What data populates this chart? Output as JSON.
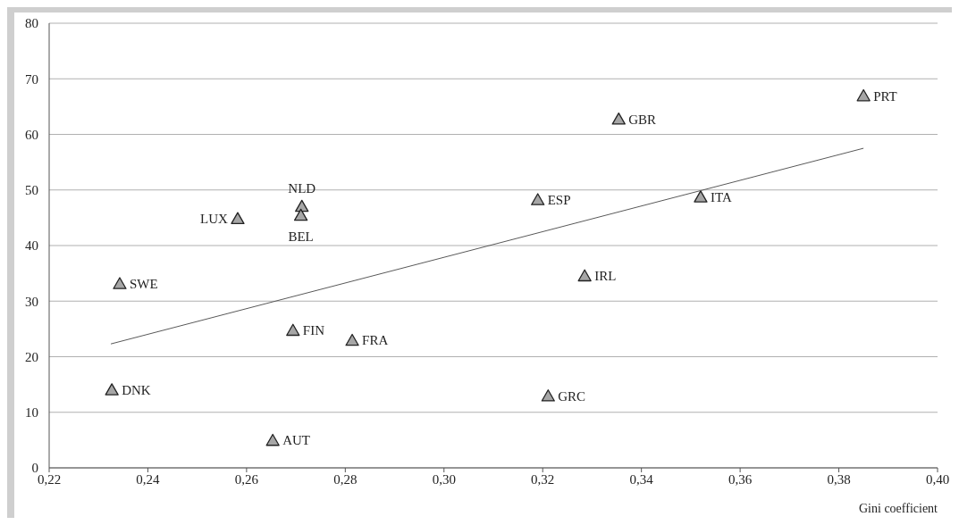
{
  "chart_data": {
    "type": "scatter",
    "xlabel": "Gini coefficient",
    "xlim": [
      0.22,
      0.4
    ],
    "xticks": [
      {
        "value": 0.22,
        "label": "0,22"
      },
      {
        "value": 0.24,
        "label": "0,24"
      },
      {
        "value": 0.26,
        "label": "0,26"
      },
      {
        "value": 0.28,
        "label": "0,28"
      },
      {
        "value": 0.3,
        "label": "0,30"
      },
      {
        "value": 0.32,
        "label": "0,32"
      },
      {
        "value": 0.34,
        "label": "0,34"
      },
      {
        "value": 0.36,
        "label": "0,36"
      },
      {
        "value": 0.38,
        "label": "0,38"
      },
      {
        "value": 0.4,
        "label": "0,40"
      }
    ],
    "ylim": [
      0,
      80
    ],
    "yticks": [
      0,
      10,
      20,
      30,
      40,
      50,
      60,
      70,
      80
    ],
    "grid": "y",
    "marker": "triangle",
    "legend": false,
    "series": [
      {
        "name": "DNK",
        "color": "#a6a6a6",
        "x": [
          0.2327
        ],
        "values": [
          14.0
        ]
      },
      {
        "name": "SWE",
        "color": "#a6a6a6",
        "x": [
          0.2343
        ],
        "values": [
          33.1
        ]
      },
      {
        "name": "AUT",
        "color": "#a6a6a6",
        "x": [
          0.2653
        ],
        "values": [
          4.9
        ]
      },
      {
        "name": "FIN",
        "color": "#a6a6a6",
        "x": [
          0.2694
        ],
        "values": [
          24.7
        ]
      },
      {
        "name": "FRA",
        "color": "#a6a6a6",
        "x": [
          0.2814
        ],
        "values": [
          22.9
        ]
      },
      {
        "name": "LUX",
        "color": "#a6a6a6",
        "x": [
          0.2582
        ],
        "values": [
          44.8
        ]
      },
      {
        "name": "NLD",
        "color": "#a6a6a6",
        "x": [
          0.2712
        ],
        "values": [
          47.0
        ]
      },
      {
        "name": "BEL",
        "color": "#a6a6a6",
        "x": [
          0.271
        ],
        "values": [
          45.4
        ]
      },
      {
        "name": "ESP",
        "color": "#a6a6a6",
        "x": [
          0.319
        ],
        "values": [
          48.2
        ]
      },
      {
        "name": "GBR",
        "color": "#a6a6a6",
        "x": [
          0.3354
        ],
        "values": [
          62.7
        ]
      },
      {
        "name": "ITA",
        "color": "#a6a6a6",
        "x": [
          0.352
        ],
        "values": [
          48.7
        ]
      },
      {
        "name": "PRT",
        "color": "#a6a6a6",
        "x": [
          0.385
        ],
        "values": [
          66.9
        ]
      },
      {
        "name": "IRL",
        "color": "#a6a6a6",
        "x": [
          0.3285
        ],
        "values": [
          34.5
        ]
      },
      {
        "name": "GRC",
        "color": "#a6a6a6",
        "x": [
          0.3211
        ],
        "values": [
          12.9
        ]
      },
      {
        "type": "line",
        "color": "#595959",
        "x": [
          0.2325,
          0.385
        ],
        "values": [
          22.3,
          57.5
        ],
        "marker": "none",
        "line_style": "solid"
      }
    ]
  }
}
